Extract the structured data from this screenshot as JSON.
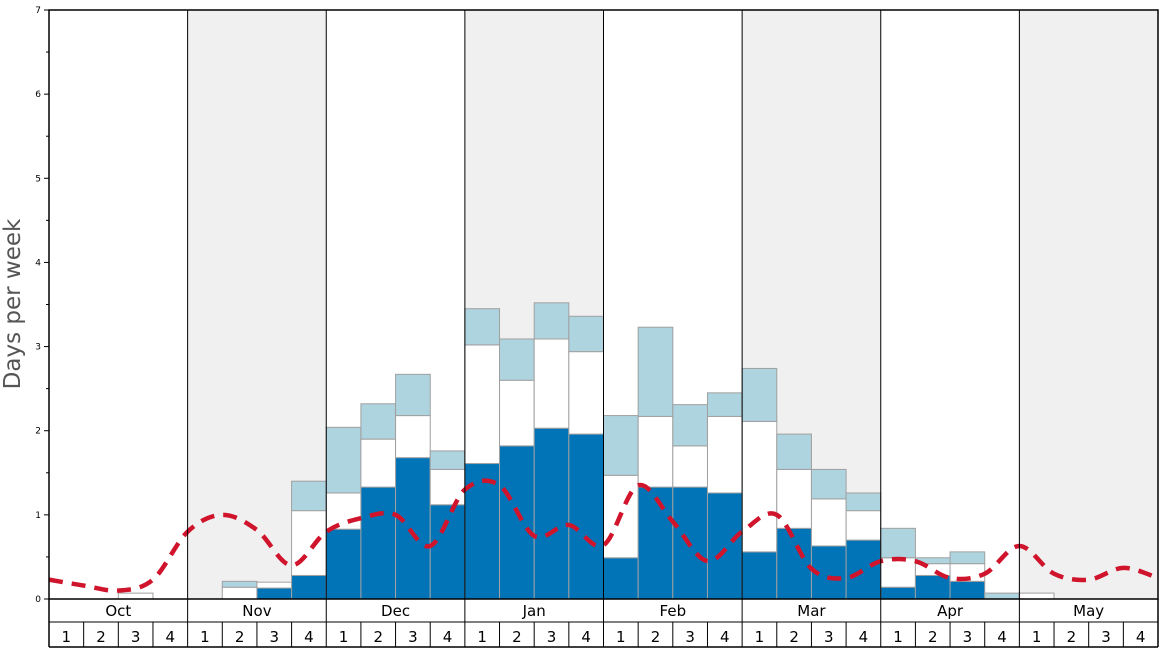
{
  "chart_data": {
    "type": "bar",
    "ylabel": "Days per week",
    "ylim": [
      0,
      7
    ],
    "y_ticks": [
      "0",
      "1",
      "2",
      "3",
      "4",
      "5",
      "6",
      "7"
    ],
    "months": [
      "Oct",
      "Nov",
      "Dec",
      "Jan",
      "Feb",
      "Mar",
      "Apr",
      "May"
    ],
    "week_labels": [
      "1",
      "2",
      "3",
      "4"
    ],
    "alternating_month_shading": true,
    "colors": {
      "dark": "#0074b7",
      "middle": "#ffffff",
      "light": "#aed4e0",
      "line": "#d0142c",
      "shade": "#f0f0f0"
    },
    "stacked_series": [
      {
        "key": "dark",
        "values": [
          0,
          0,
          0,
          0,
          0,
          0,
          0.13,
          0.28,
          0.83,
          1.33,
          1.68,
          1.12,
          1.61,
          1.82,
          2.03,
          1.96,
          0.49,
          1.33,
          1.33,
          1.26,
          0.56,
          0.84,
          0.63,
          0.7,
          0.14,
          0.28,
          0.21,
          0,
          0,
          0,
          0,
          0
        ]
      },
      {
        "key": "middle",
        "values": [
          0,
          0,
          0.07,
          0,
          0,
          0.14,
          0.07,
          0.77,
          0.43,
          0.57,
          0.5,
          0.42,
          1.41,
          0.78,
          1.06,
          0.98,
          0.98,
          0.84,
          0.49,
          0.91,
          1.55,
          0.7,
          0.56,
          0.35,
          0.35,
          0.14,
          0.21,
          0,
          0.07,
          0,
          0,
          0
        ]
      },
      {
        "key": "light",
        "values": [
          0,
          0,
          0,
          0,
          0,
          0.07,
          0,
          0.35,
          0.78,
          0.42,
          0.49,
          0.22,
          0.43,
          0.49,
          0.43,
          0.42,
          0.71,
          1.06,
          0.49,
          0.28,
          0.63,
          0.42,
          0.35,
          0.21,
          0.35,
          0.07,
          0.14,
          0.07,
          0,
          0,
          0,
          0
        ]
      }
    ],
    "line_series": {
      "style": "dashed",
      "values": [
        0.23,
        0.16,
        0.1,
        0.23,
        0.8,
        1.0,
        0.82,
        0.4,
        0.8,
        0.96,
        1.0,
        0.63,
        1.3,
        1.35,
        0.75,
        0.88,
        0.64,
        1.35,
        0.92,
        0.45,
        0.8,
        1.0,
        0.36,
        0.25,
        0.45,
        0.45,
        0.25,
        0.3,
        0.63,
        0.3,
        0.23,
        0.37,
        0.25
      ]
    }
  }
}
